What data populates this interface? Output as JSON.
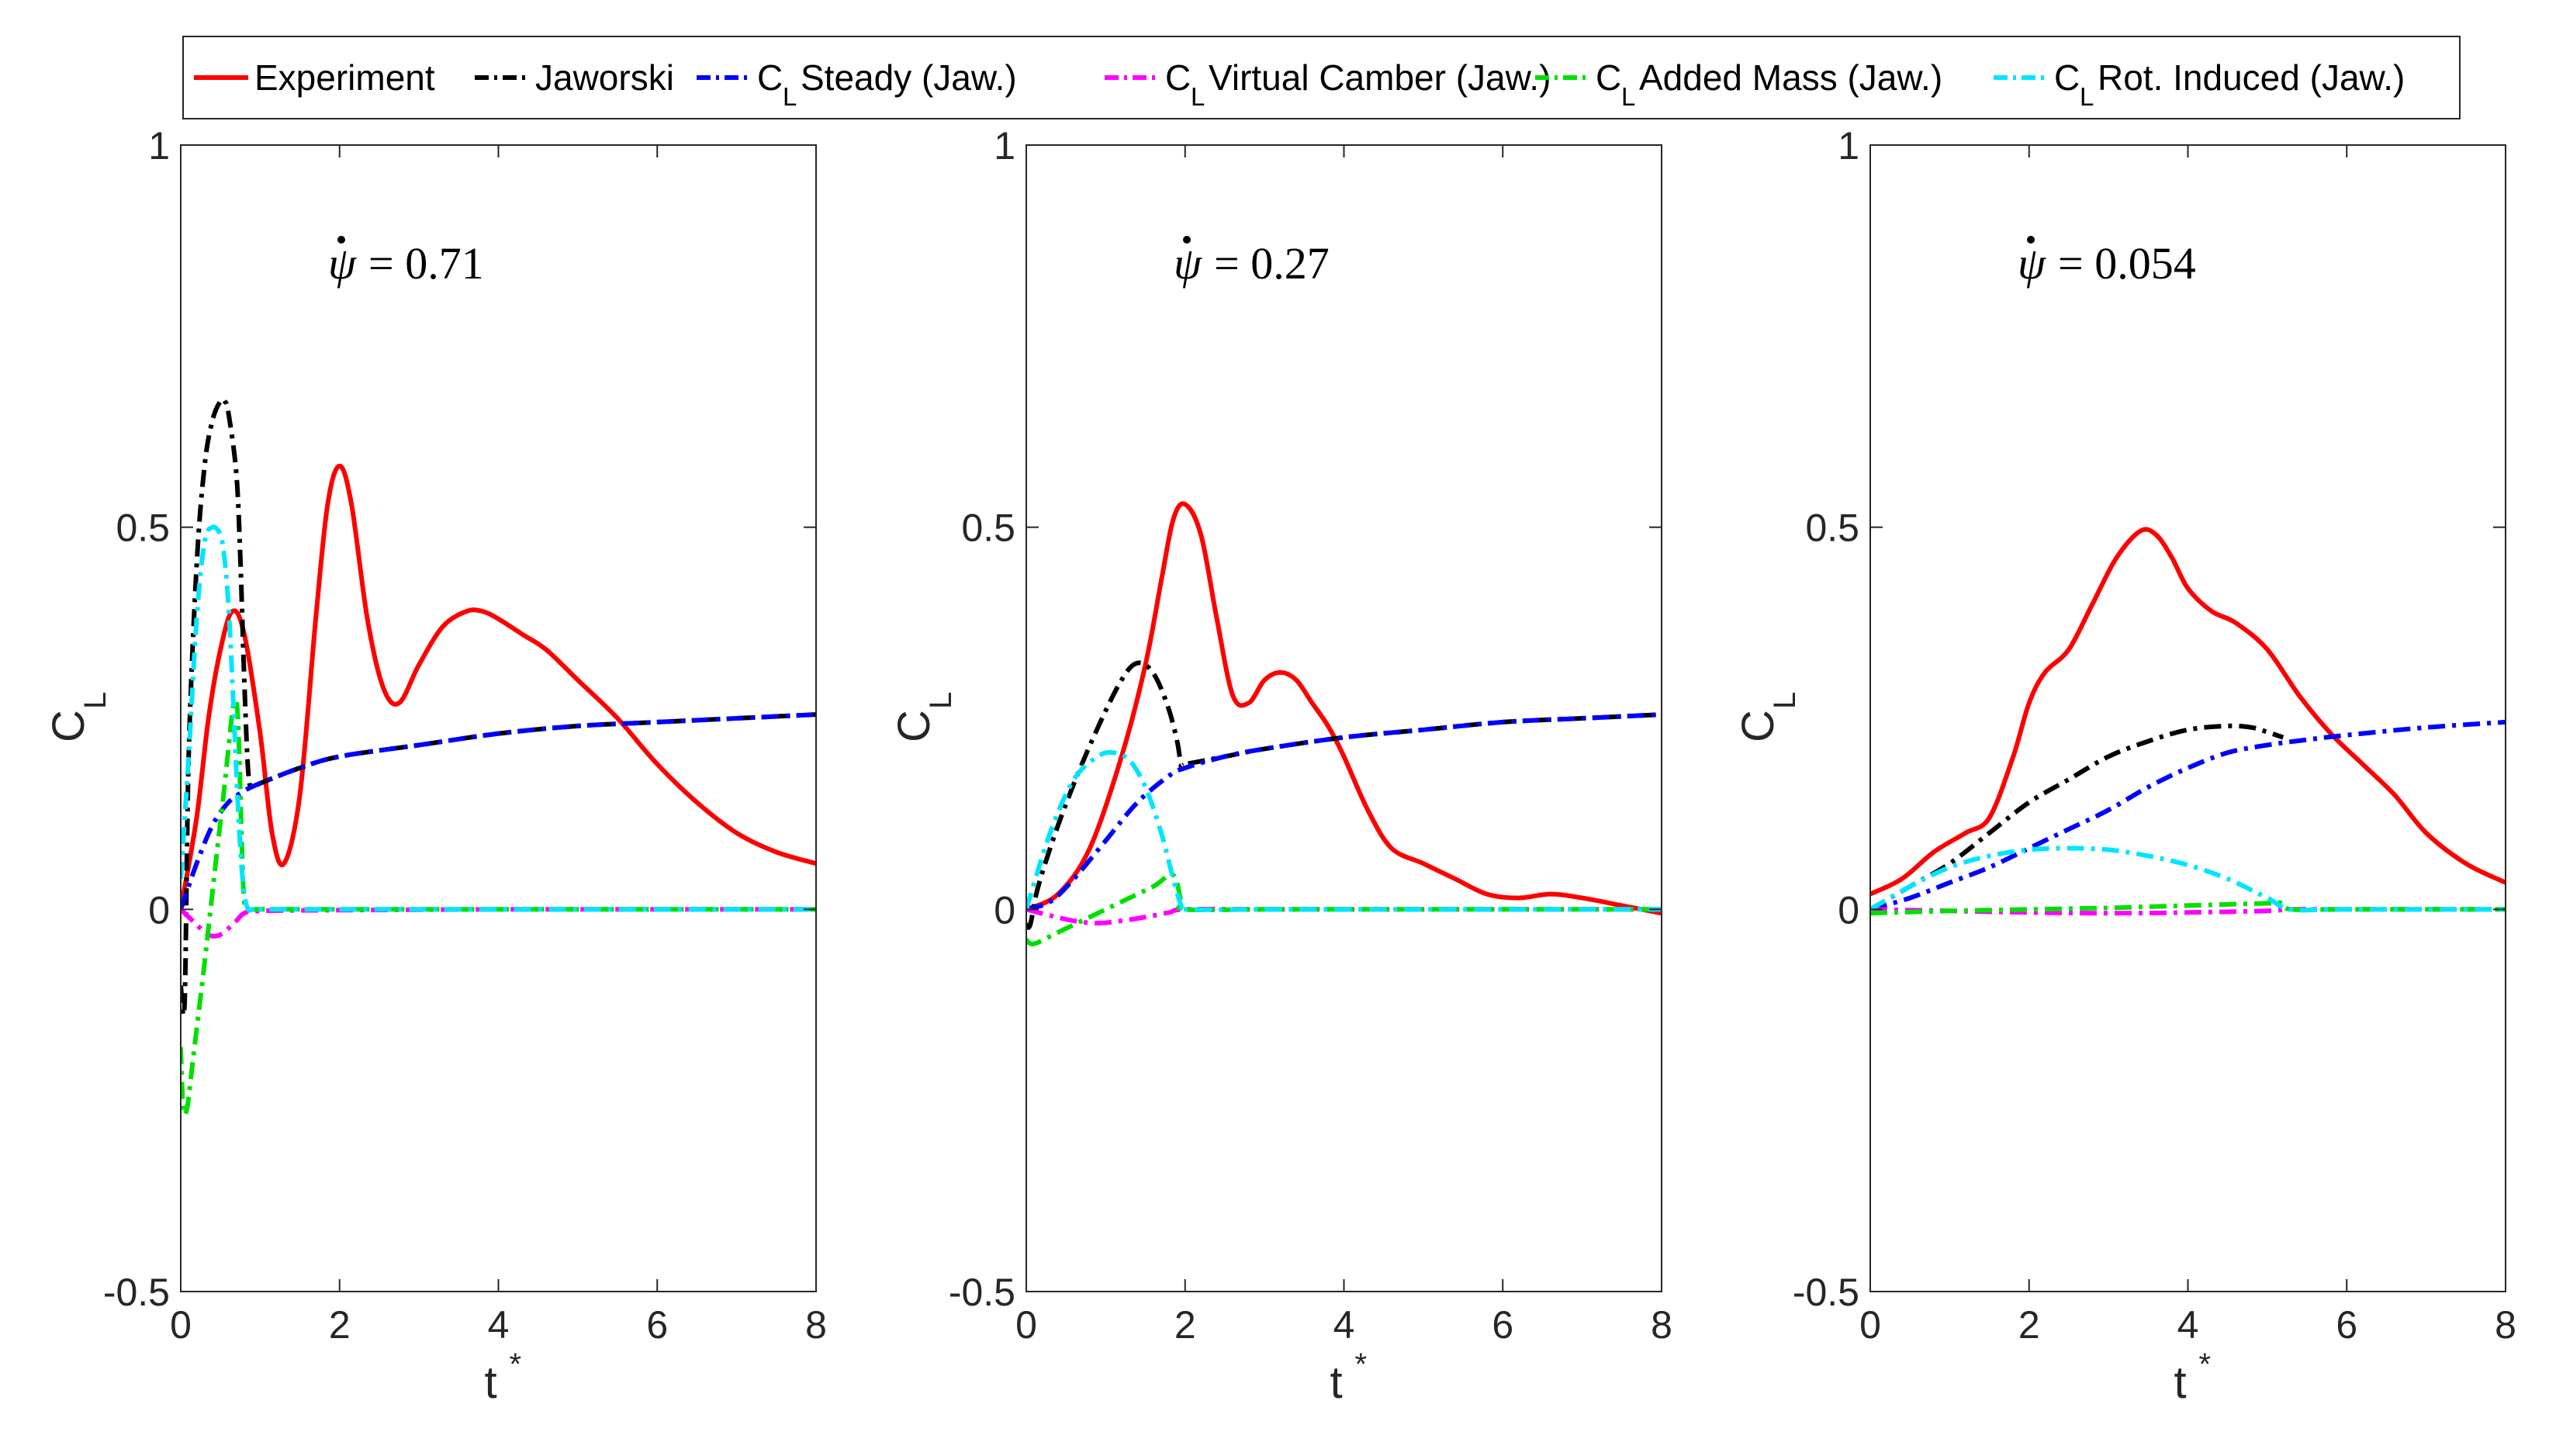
{
  "chart_data": [
    {
      "type": "line",
      "panel": "left",
      "annotation": {
        "symbol": "ψ",
        "value": "= 0.71"
      },
      "xlabel": "t",
      "xlabel_sup": "*",
      "ylabel": "C",
      "ylabel_sub": "L",
      "xlim": [
        0,
        8
      ],
      "ylim": [
        -0.5,
        1
      ],
      "xticks": [
        "0",
        "2",
        "4",
        "6",
        "8"
      ],
      "yticks": [
        "-0.5",
        "0",
        "0.5",
        "1"
      ],
      "series": [
        {
          "name": "Experiment",
          "color": "#ff0000",
          "dash": "solid",
          "x": [
            0,
            0.2,
            0.35,
            0.5,
            0.65,
            0.8,
            1.0,
            1.15,
            1.3,
            1.5,
            1.7,
            1.85,
            2.0,
            2.15,
            2.35,
            2.55,
            2.75,
            3.0,
            3.3,
            3.6,
            3.8,
            4.0,
            4.3,
            4.6,
            5.0,
            5.5,
            6.0,
            6.5,
            7.0,
            7.5,
            8.0
          ],
          "y": [
            0.0,
            0.12,
            0.25,
            0.34,
            0.39,
            0.36,
            0.23,
            0.1,
            0.06,
            0.15,
            0.38,
            0.53,
            0.58,
            0.53,
            0.38,
            0.29,
            0.27,
            0.32,
            0.37,
            0.39,
            0.39,
            0.38,
            0.36,
            0.34,
            0.3,
            0.25,
            0.19,
            0.14,
            0.1,
            0.075,
            0.06
          ]
        },
        {
          "name": "Jaworski",
          "color": "#000000",
          "dash": "dashdot",
          "x": [
            0,
            0.05,
            0.1,
            0.2,
            0.3,
            0.4,
            0.5,
            0.55,
            0.6,
            0.7,
            0.75,
            0.8,
            0.85,
            0.9,
            1.0,
            1.5,
            2.0,
            3.0,
            4.0,
            5.0,
            6.0,
            7.0,
            8.0
          ],
          "y": [
            -0.1,
            -0.12,
            0.2,
            0.45,
            0.58,
            0.64,
            0.665,
            0.665,
            0.65,
            0.57,
            0.46,
            0.3,
            0.18,
            0.16,
            0.165,
            0.185,
            0.2,
            0.215,
            0.23,
            0.24,
            0.245,
            0.25,
            0.255
          ]
        },
        {
          "name": "C_L Steady (Jaw.)",
          "color": "#0000ff",
          "dash": "dashdot",
          "x": [
            0,
            0.2,
            0.4,
            0.6,
            0.8,
            1.0,
            1.5,
            2.0,
            3.0,
            4.0,
            5.0,
            6.0,
            7.0,
            8.0
          ],
          "y": [
            0.0,
            0.06,
            0.11,
            0.14,
            0.155,
            0.165,
            0.185,
            0.2,
            0.215,
            0.23,
            0.24,
            0.245,
            0.25,
            0.255
          ]
        },
        {
          "name": "C_L Virtual Camber (Jaw.)",
          "color": "#ff00ff",
          "dash": "dashdot",
          "x": [
            0,
            0.1,
            0.2,
            0.3,
            0.4,
            0.5,
            0.6,
            0.7,
            0.8,
            1.0,
            2.0,
            4.0,
            6.0,
            8.0
          ],
          "y": [
            0.0,
            -0.01,
            -0.02,
            -0.03,
            -0.035,
            -0.033,
            -0.025,
            -0.015,
            -0.005,
            -0.002,
            -0.001,
            0.0,
            0.0,
            0.0
          ]
        },
        {
          "name": "C_L Added Mass (Jaw.)",
          "color": "#00e000",
          "dash": "dashdot",
          "x": [
            0,
            0.03,
            0.08,
            0.15,
            0.3,
            0.45,
            0.55,
            0.62,
            0.67,
            0.72,
            0.77,
            0.8,
            0.85,
            1.0,
            2.0,
            4.0,
            6.0,
            8.0
          ],
          "y": [
            -0.18,
            -0.26,
            -0.26,
            -0.2,
            -0.07,
            0.07,
            0.16,
            0.23,
            0.27,
            0.25,
            0.08,
            0.01,
            0.0,
            0.0,
            0.0,
            0.0,
            0.0,
            0.0
          ]
        },
        {
          "name": "C_L Rot. Induced (Jaw.)",
          "color": "#00e5ff",
          "dash": "dashdot",
          "x": [
            0,
            0.1,
            0.2,
            0.3,
            0.4,
            0.5,
            0.55,
            0.6,
            0.65,
            0.7,
            0.75,
            0.8,
            0.85,
            0.9,
            1.0,
            2.0,
            4.0,
            6.0,
            8.0
          ],
          "y": [
            0.04,
            0.2,
            0.38,
            0.48,
            0.5,
            0.49,
            0.46,
            0.4,
            0.3,
            0.18,
            0.08,
            0.02,
            0.0,
            0.0,
            0.0,
            0.0,
            0.0,
            0.0,
            0.0
          ]
        }
      ]
    },
    {
      "type": "line",
      "panel": "middle",
      "annotation": {
        "symbol": "ψ",
        "value": "= 0.27"
      },
      "xlabel": "t",
      "xlabel_sup": "*",
      "ylabel": "C",
      "ylabel_sub": "L",
      "xlim": [
        0,
        8
      ],
      "ylim": [
        -0.5,
        1
      ],
      "xticks": [
        "0",
        "2",
        "4",
        "6",
        "8"
      ],
      "yticks": [
        "-0.5",
        "0",
        "0.5",
        "1"
      ],
      "series": [
        {
          "name": "Experiment",
          "color": "#ff0000",
          "dash": "solid",
          "x": [
            0,
            0.4,
            0.8,
            1.2,
            1.5,
            1.7,
            1.85,
            2.0,
            2.2,
            2.4,
            2.6,
            2.8,
            3.0,
            3.2,
            3.4,
            3.6,
            3.8,
            4.0,
            4.3,
            4.6,
            5.0,
            5.4,
            5.8,
            6.2,
            6.6,
            7.0,
            7.5,
            8.0
          ],
          "y": [
            0.0,
            0.02,
            0.08,
            0.2,
            0.32,
            0.43,
            0.51,
            0.53,
            0.49,
            0.38,
            0.28,
            0.27,
            0.3,
            0.31,
            0.3,
            0.27,
            0.24,
            0.2,
            0.13,
            0.08,
            0.06,
            0.04,
            0.02,
            0.015,
            0.02,
            0.015,
            0.005,
            -0.005
          ]
        },
        {
          "name": "Jaworski",
          "color": "#000000",
          "dash": "dashdot",
          "x": [
            0,
            0.05,
            0.15,
            0.4,
            0.7,
            1.0,
            1.2,
            1.35,
            1.5,
            1.65,
            1.8,
            1.9,
            1.95,
            2.0,
            2.5,
            3.0,
            4.0,
            5.0,
            6.0,
            7.0,
            8.0
          ],
          "y": [
            -0.02,
            -0.02,
            0.03,
            0.11,
            0.19,
            0.26,
            0.3,
            0.32,
            0.32,
            0.3,
            0.26,
            0.22,
            0.19,
            0.19,
            0.2,
            0.21,
            0.225,
            0.235,
            0.245,
            0.25,
            0.255
          ]
        },
        {
          "name": "C_L Steady (Jaw.)",
          "color": "#0000ff",
          "dash": "dashdot",
          "x": [
            0,
            0.3,
            0.6,
            1.0,
            1.4,
            1.8,
            2.0,
            2.5,
            3.0,
            4.0,
            5.0,
            6.0,
            7.0,
            8.0
          ],
          "y": [
            0.0,
            0.01,
            0.04,
            0.09,
            0.14,
            0.175,
            0.185,
            0.2,
            0.21,
            0.225,
            0.235,
            0.245,
            0.25,
            0.255
          ]
        },
        {
          "name": "C_L Virtual Camber (Jaw.)",
          "color": "#ff00ff",
          "dash": "dashdot",
          "x": [
            0,
            0.3,
            0.6,
            0.9,
            1.2,
            1.5,
            1.8,
            2.0,
            3.0,
            4.0,
            6.0,
            8.0
          ],
          "y": [
            0.0,
            -0.008,
            -0.015,
            -0.018,
            -0.015,
            -0.01,
            -0.004,
            0.0,
            0.0,
            0.0,
            0.0,
            0.0
          ]
        },
        {
          "name": "C_L Added Mass (Jaw.)",
          "color": "#00e000",
          "dash": "dashdot",
          "x": [
            0,
            0.1,
            0.4,
            0.8,
            1.2,
            1.6,
            1.85,
            1.95,
            2.0,
            3.0,
            4.0,
            6.0,
            8.0
          ],
          "y": [
            -0.04,
            -0.045,
            -0.03,
            -0.01,
            0.01,
            0.03,
            0.045,
            0.01,
            0.0,
            0.0,
            0.0,
            0.0,
            0.0
          ]
        },
        {
          "name": "C_L Rot. Induced (Jaw.)",
          "color": "#00e5ff",
          "dash": "dashdot",
          "x": [
            0,
            0.3,
            0.6,
            0.9,
            1.1,
            1.3,
            1.5,
            1.7,
            1.85,
            1.95,
            2.0,
            3.0,
            4.0,
            6.0,
            8.0
          ],
          "y": [
            0.0,
            0.1,
            0.17,
            0.2,
            0.205,
            0.195,
            0.16,
            0.1,
            0.04,
            0.005,
            0.0,
            0.0,
            0.0,
            0.0,
            0.0
          ]
        }
      ]
    },
    {
      "type": "line",
      "panel": "right",
      "annotation": {
        "symbol": "ψ",
        "value": "= 0.054"
      },
      "xlabel": "t",
      "xlabel_sup": "*",
      "ylabel": "C",
      "ylabel_sub": "L",
      "xlim": [
        0,
        8
      ],
      "ylim": [
        -0.5,
        1
      ],
      "xticks": [
        "0",
        "2",
        "4",
        "6",
        "8"
      ],
      "yticks": [
        "-0.5",
        "0",
        "0.5",
        "1"
      ],
      "series": [
        {
          "name": "Experiment",
          "color": "#ff0000",
          "dash": "solid",
          "x": [
            0,
            0.4,
            0.8,
            1.2,
            1.5,
            1.8,
            2.0,
            2.2,
            2.5,
            2.8,
            3.1,
            3.4,
            3.6,
            3.8,
            4.0,
            4.3,
            4.6,
            5.0,
            5.4,
            5.8,
            6.2,
            6.6,
            7.0,
            7.5,
            8.0
          ],
          "y": [
            0.02,
            0.04,
            0.075,
            0.1,
            0.12,
            0.2,
            0.27,
            0.31,
            0.34,
            0.4,
            0.46,
            0.495,
            0.49,
            0.46,
            0.42,
            0.39,
            0.375,
            0.34,
            0.28,
            0.23,
            0.19,
            0.15,
            0.1,
            0.06,
            0.035
          ]
        },
        {
          "name": "Jaworski",
          "color": "#000000",
          "dash": "dashdot",
          "x": [
            0,
            0.5,
            1.0,
            1.5,
            2.0,
            2.5,
            3.0,
            3.5,
            4.0,
            4.5,
            4.8,
            5.0,
            5.2
          ],
          "y": [
            0.0,
            0.03,
            0.06,
            0.1,
            0.14,
            0.17,
            0.2,
            0.22,
            0.235,
            0.24,
            0.238,
            0.232,
            0.225
          ]
        },
        {
          "name": "C_L Steady (Jaw.)",
          "color": "#0000ff",
          "dash": "dashdot",
          "x": [
            0,
            0.5,
            1.0,
            1.5,
            2.0,
            2.5,
            3.0,
            3.5,
            4.0,
            4.5,
            5.0,
            5.5,
            6.0,
            7.0,
            8.0
          ],
          "y": [
            0.0,
            0.015,
            0.035,
            0.055,
            0.08,
            0.105,
            0.13,
            0.16,
            0.185,
            0.205,
            0.215,
            0.222,
            0.228,
            0.238,
            0.245
          ]
        },
        {
          "name": "C_L Virtual Camber (Jaw.)",
          "color": "#ff00ff",
          "dash": "dashdot",
          "x": [
            0,
            1.0,
            2.0,
            3.0,
            4.0,
            5.0,
            5.3,
            6.0,
            8.0
          ],
          "y": [
            0.0,
            -0.002,
            -0.004,
            -0.005,
            -0.004,
            -0.002,
            0.0,
            0.0,
            0.0
          ]
        },
        {
          "name": "C_L Added Mass (Jaw.)",
          "color": "#00e000",
          "dash": "dashdot",
          "x": [
            0,
            1.0,
            2.0,
            3.0,
            4.0,
            5.0,
            5.2,
            5.3,
            6.0,
            8.0
          ],
          "y": [
            -0.005,
            -0.002,
            0.0,
            0.002,
            0.005,
            0.008,
            0.008,
            0.0,
            0.0,
            0.0
          ]
        },
        {
          "name": "C_L Rot. Induced (Jaw.)",
          "color": "#00e5ff",
          "dash": "dashdot",
          "x": [
            0,
            0.5,
            1.0,
            1.5,
            2.0,
            2.5,
            3.0,
            3.5,
            4.0,
            4.5,
            5.0,
            5.3,
            6.0,
            8.0
          ],
          "y": [
            0.0,
            0.03,
            0.055,
            0.07,
            0.078,
            0.08,
            0.078,
            0.07,
            0.058,
            0.04,
            0.015,
            0.0,
            0.0,
            0.0
          ]
        }
      ]
    }
  ],
  "legend": {
    "placement": "top",
    "items": [
      {
        "prefix": "",
        "sub": "",
        "text": "Experiment",
        "color": "#ff0000",
        "dash": "solid"
      },
      {
        "prefix": "",
        "sub": "",
        "text": "Jaworski",
        "color": "#000000",
        "dash": "dashdot"
      },
      {
        "prefix": "C",
        "sub": "L",
        "text": "Steady (Jaw.)",
        "color": "#0000ff",
        "dash": "dashdot"
      },
      {
        "prefix": "C",
        "sub": "L",
        "text": "Virtual Camber (Jaw.)",
        "color": "#ff00ff",
        "dash": "dashdot"
      },
      {
        "prefix": "C",
        "sub": "L",
        "text": "Added Mass (Jaw.)",
        "color": "#00e000",
        "dash": "dashdot"
      },
      {
        "prefix": "C",
        "sub": "L",
        "text": "Rot. Induced (Jaw.)",
        "color": "#00e5ff",
        "dash": "dashdot"
      }
    ]
  }
}
